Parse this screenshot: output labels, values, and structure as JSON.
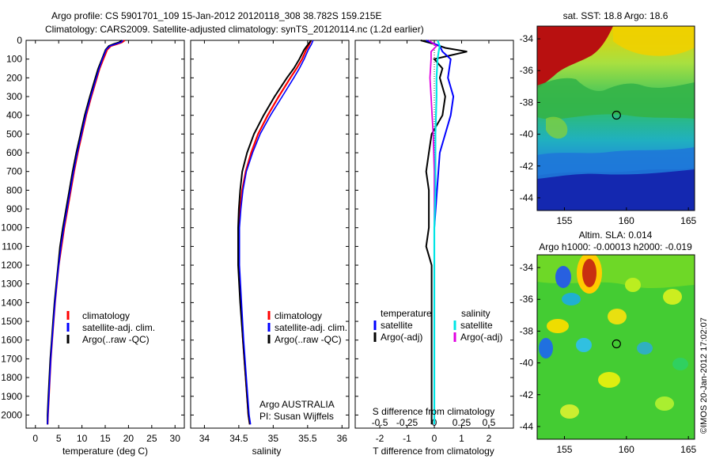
{
  "header": {
    "line1": "Argo profile: CS 5901701_109 15-Jan-2012 20120118_308 38.782S 159.215E",
    "line2": "Climatology: CARS2009. Satellite-adjusted climatology: synTS_20120114.nc (1.2d earlier)"
  },
  "colors": {
    "climatology": "#ff0000",
    "satellite": "#0000ff",
    "argo": "#000000",
    "satellite_sal": "#00e5e5",
    "argo_sal": "#e000e0"
  },
  "depth_ticks": [
    "0",
    "100",
    "200",
    "300",
    "400",
    "500",
    "600",
    "700",
    "800",
    "900",
    "1000",
    "1100",
    "1200",
    "1300",
    "1400",
    "1500",
    "1600",
    "1700",
    "1800",
    "1900",
    "2000"
  ],
  "chart_data": [
    {
      "type": "line",
      "name": "temperature",
      "xlabel": "temperature (deg C)",
      "ylabel": "depth",
      "xlim": [
        -2,
        32
      ],
      "ylim": [
        2070,
        0
      ],
      "xticks": [
        "0",
        "5",
        "10",
        "15",
        "20",
        "25",
        "30"
      ],
      "legend": [
        "climatology",
        "satellite-adj. clim.",
        "Argo(..raw -QC)"
      ],
      "series": [
        {
          "name": "climatology",
          "depth": [
            0,
            10,
            20,
            30,
            50,
            75,
            100,
            150,
            200,
            250,
            300,
            400,
            500,
            600,
            700,
            800,
            900,
            1000,
            1100,
            1200,
            1300,
            1400,
            1500,
            1600,
            1700,
            1800,
            1900,
            2000,
            2050
          ],
          "values": [
            19.2,
            18.6,
            17.5,
            16.2,
            15.4,
            15.0,
            14.6,
            13.8,
            13.2,
            12.6,
            12.0,
            10.9,
            10.0,
            9.1,
            8.3,
            7.6,
            6.9,
            6.2,
            5.6,
            5.0,
            4.6,
            4.2,
            3.9,
            3.6,
            3.3,
            3.1,
            2.9,
            2.7,
            2.6
          ]
        },
        {
          "name": "satellite-adj. clim.",
          "depth": [
            0,
            10,
            20,
            30,
            50,
            75,
            100,
            150,
            200,
            250,
            300,
            400,
            500,
            600,
            700,
            800,
            900,
            1000,
            1100,
            1200,
            1300,
            1400,
            1500,
            1600,
            1700,
            1800,
            1900,
            2000,
            2050
          ],
          "values": [
            18.8,
            18.4,
            17.2,
            16.0,
            15.2,
            14.8,
            14.4,
            13.7,
            13.1,
            12.5,
            11.9,
            10.8,
            9.9,
            9.0,
            8.2,
            7.5,
            6.8,
            6.1,
            5.5,
            5.0,
            4.6,
            4.2,
            3.9,
            3.6,
            3.3,
            3.1,
            2.9,
            2.7,
            2.6
          ]
        },
        {
          "name": "Argo(..raw -QC)",
          "depth": [
            0,
            10,
            20,
            30,
            50,
            75,
            100,
            150,
            200,
            250,
            300,
            400,
            500,
            600,
            700,
            800,
            900,
            1000,
            1100,
            1200,
            1300,
            1400,
            1500,
            1600,
            1700,
            1800,
            1900,
            2000,
            2050
          ],
          "values": [
            18.6,
            18.0,
            16.8,
            15.8,
            15.1,
            14.7,
            14.3,
            13.5,
            12.9,
            12.3,
            11.7,
            10.6,
            9.7,
            8.8,
            8.0,
            7.3,
            6.6,
            5.9,
            5.3,
            4.9,
            4.5,
            4.1,
            3.8,
            3.5,
            3.2,
            3.0,
            2.8,
            2.6,
            2.6
          ]
        }
      ]
    },
    {
      "type": "line",
      "name": "salinity",
      "xlabel": "salinity",
      "ylabel": "depth",
      "xlim": [
        33.8,
        36.1
      ],
      "ylim": [
        2070,
        0
      ],
      "xticks": [
        "34",
        "34.5",
        "35",
        "35.5",
        "36"
      ],
      "legend": [
        "climatology",
        "satellite-adj. clim.",
        "Argo(..raw -QC)"
      ],
      "annotation": [
        "Argo AUSTRALIA",
        "PI: Susan Wijffels"
      ],
      "series": [
        {
          "name": "climatology",
          "depth": [
            0,
            25,
            50,
            100,
            150,
            200,
            300,
            400,
            500,
            600,
            700,
            800,
            900,
            1000,
            1200,
            1400,
            1600,
            1800,
            2000,
            2050
          ],
          "values": [
            35.55,
            35.52,
            35.48,
            35.42,
            35.34,
            35.25,
            35.08,
            34.92,
            34.78,
            34.68,
            34.6,
            34.55,
            34.52,
            34.5,
            34.5,
            34.53,
            34.56,
            34.6,
            34.64,
            34.66
          ]
        },
        {
          "name": "satellite-adj. clim.",
          "depth": [
            0,
            25,
            50,
            100,
            150,
            200,
            300,
            400,
            500,
            600,
            700,
            800,
            900,
            1000,
            1200,
            1400,
            1600,
            1800,
            2000,
            2050
          ],
          "values": [
            35.58,
            35.55,
            35.51,
            35.45,
            35.38,
            35.3,
            35.13,
            34.96,
            34.81,
            34.7,
            34.61,
            34.56,
            34.53,
            34.51,
            34.51,
            34.54,
            34.57,
            34.61,
            34.65,
            34.67
          ]
        },
        {
          "name": "Argo(..raw -QC)",
          "depth": [
            0,
            25,
            50,
            100,
            150,
            200,
            300,
            400,
            500,
            600,
            700,
            800,
            900,
            1000,
            1200,
            1400,
            1600,
            1800,
            2000,
            2050
          ],
          "values": [
            35.55,
            35.5,
            35.45,
            35.38,
            35.3,
            35.2,
            35.02,
            34.86,
            34.72,
            34.62,
            34.55,
            34.52,
            34.5,
            34.49,
            34.49,
            34.52,
            34.56,
            34.6,
            34.64,
            34.66
          ]
        }
      ]
    },
    {
      "type": "line",
      "name": "differences",
      "xlabel": "T difference from climatology",
      "xlabel_top": "S difference from climatology",
      "xlim": [
        -2.9,
        2.9
      ],
      "ylim": [
        2070,
        0
      ],
      "xticks_T": [
        "-2",
        "-1",
        "0",
        "1",
        "2"
      ],
      "xticks_S": [
        "-0.5",
        "-0.25",
        "0",
        "0.25",
        "0.5"
      ],
      "legend_temperature_title": "temperature",
      "legend_temperature": [
        "satellite",
        "Argo(-adj)"
      ],
      "legend_salinity_title": "salinity",
      "legend_salinity": [
        "satellite",
        "Argo(-adj)"
      ],
      "series": [
        {
          "name": "T satellite",
          "depth": [
            0,
            30,
            60,
            100,
            200,
            300,
            400,
            500,
            600,
            800,
            1000,
            1200,
            1500,
            2000,
            2050
          ],
          "values": [
            -0.3,
            0.2,
            0.3,
            0.6,
            0.5,
            0.7,
            0.6,
            0.4,
            0.2,
            0.1,
            0.0,
            0.0,
            0.0,
            0.0,
            0.0
          ]
        },
        {
          "name": "T Argo(-adj)",
          "depth": [
            0,
            20,
            40,
            60,
            80,
            100,
            150,
            200,
            300,
            400,
            500,
            600,
            700,
            800,
            900,
            1000,
            1100,
            1200,
            1400,
            1600,
            1800,
            2000,
            2050
          ],
          "values": [
            -0.5,
            0.0,
            0.4,
            1.2,
            0.6,
            0.0,
            0.3,
            0.2,
            0.4,
            0.3,
            -0.1,
            -0.2,
            -0.3,
            -0.2,
            -0.2,
            -0.2,
            -0.3,
            -0.1,
            -0.1,
            -0.1,
            -0.1,
            -0.1,
            -0.1
          ]
        },
        {
          "name": "S satellite",
          "depth": [
            0,
            30,
            60,
            100,
            200,
            300,
            500,
            800,
            1000,
            1500,
            2000,
            2050
          ],
          "values": [
            0.03,
            0.05,
            0.04,
            0.03,
            0.02,
            0.02,
            0.01,
            0.01,
            0.0,
            0.0,
            0.0,
            0.0
          ]
        },
        {
          "name": "S Argo(-adj)",
          "depth": [
            0,
            30,
            60,
            100,
            200,
            300,
            400,
            500,
            700,
            1000,
            1500,
            2000,
            2050
          ],
          "values": [
            -0.05,
            0.02,
            -0.03,
            -0.03,
            -0.04,
            -0.03,
            -0.02,
            -0.01,
            0.0,
            0.0,
            0.0,
            0.0,
            0.0
          ]
        }
      ]
    },
    {
      "type": "heatmap",
      "name": "satellite SST map",
      "title": "sat. SST: 18.8  Argo: 18.6",
      "xticks": [
        "155",
        "160",
        "165"
      ],
      "yticks": [
        "-34",
        "-36",
        "-38",
        "-40",
        "-42",
        "-44"
      ],
      "xlim": [
        152.8,
        165.5
      ],
      "ylim": [
        -44.8,
        -33.2
      ],
      "marker": {
        "lon": 159.2,
        "lat": -38.8
      }
    },
    {
      "type": "heatmap",
      "name": "altimeter SLA map",
      "title_line1": "Altim. SLA: 0.014",
      "title_line2": "Argo h1000: -0.00013 h2000: -0.019",
      "xticks": [
        "155",
        "160",
        "165"
      ],
      "yticks": [
        "-34",
        "-36",
        "-38",
        "-40",
        "-42",
        "-44"
      ],
      "xlim": [
        152.8,
        165.5
      ],
      "ylim": [
        -44.8,
        -33.2
      ],
      "marker": {
        "lon": 159.2,
        "lat": -38.8
      }
    }
  ],
  "credit": "©IMOS 20-Jan-2012 17:02:07"
}
